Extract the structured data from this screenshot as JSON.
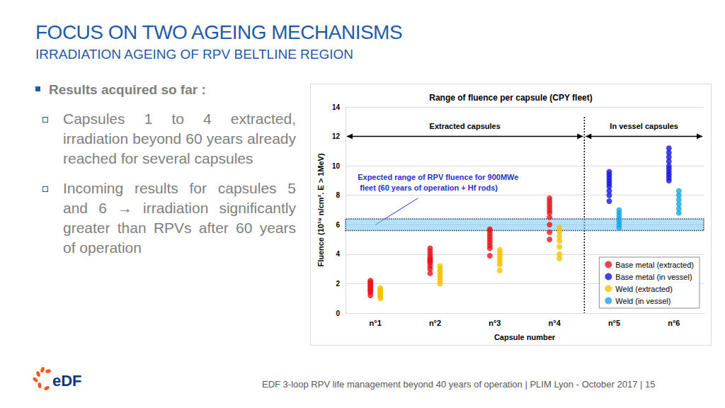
{
  "header": {
    "title": "FOCUS ON TWO AGEING MECHANISMS",
    "subtitle": "IRRADIATION AGEING OF RPV BELTLINE REGION"
  },
  "bullets": {
    "heading": "Results acquired so far :",
    "items": [
      "Capsules 1 to 4 extracted, irradiation beyond 60 years already reached for several capsules",
      "Incoming results for capsules 5 and 6 → irradiation significantly greater than RPVs after 60 years of operation"
    ]
  },
  "logo": "eDF",
  "footer": "EDF 3-loop RPV life management beyond 40 years of operation | PLIM Lyon - October 2017 | 15",
  "chart_data": {
    "type": "scatter",
    "title": "Range of fluence per capsule (CPY fleet)",
    "x_label": "Capsule number",
    "y_label": "Fluence (10¹⁹ n/cm². E > 1MeV)",
    "categories": [
      "n°1",
      "n°2",
      "n°3",
      "n°4",
      "n°5",
      "n°6"
    ],
    "series": [
      {
        "name": "Base metal (extracted)",
        "color": "#e8141b",
        "marker": "circle",
        "values": [
          [
            1.2,
            1.4,
            1.5,
            1.6,
            1.7,
            1.8,
            1.9,
            2.0,
            2.1,
            2.2
          ],
          [
            2.7,
            3.0,
            3.2,
            3.4,
            3.5,
            3.6,
            3.7,
            3.8,
            4.0,
            4.2,
            4.4
          ],
          [
            3.9,
            4.4,
            4.6,
            4.8,
            5.0,
            5.2,
            5.4,
            5.6,
            5.7
          ],
          [
            5.0,
            5.5,
            6.0,
            6.5,
            6.8,
            7.0,
            7.2,
            7.4,
            7.6,
            7.8
          ],
          null,
          null
        ]
      },
      {
        "name": "Base metal (in vessel)",
        "color": "#1414e0",
        "marker": "circle",
        "values": [
          null,
          null,
          null,
          null,
          [
            7.6,
            8.0,
            8.3,
            8.6,
            8.8,
            9.0,
            9.2,
            9.4,
            9.6
          ],
          [
            9.0,
            9.2,
            9.4,
            9.6,
            9.8,
            10.0,
            10.3,
            10.6,
            10.9,
            11.2
          ]
        ]
      },
      {
        "name": "Weld (extracted)",
        "color": "#f5c200",
        "marker": "circle",
        "values": [
          [
            1.0,
            1.1,
            1.2,
            1.3,
            1.4,
            1.5,
            1.6,
            1.7
          ],
          [
            2.0,
            2.2,
            2.4,
            2.6,
            2.8,
            3.0,
            3.2
          ],
          [
            2.9,
            3.3,
            3.5,
            3.7,
            3.9,
            4.1,
            4.3
          ],
          [
            3.7,
            4.0,
            4.5,
            4.9,
            5.2,
            5.5,
            5.8
          ],
          null,
          null
        ]
      },
      {
        "name": "Weld (in vessel)",
        "color": "#17a8e6",
        "marker": "circle",
        "values": [
          null,
          null,
          null,
          null,
          [
            5.8,
            6.0,
            6.2,
            6.4,
            6.6,
            6.8,
            7.0
          ],
          [
            6.8,
            7.1,
            7.4,
            7.7,
            8.0,
            8.3
          ]
        ]
      }
    ],
    "ylim": [
      0,
      14
    ],
    "yticks": [
      0,
      2,
      4,
      6,
      8,
      10,
      12,
      14
    ],
    "grid": true,
    "legend": "bottom-right",
    "annotations": {
      "regions": [
        "Extracted capsules",
        "In vessel capsules"
      ],
      "expected_range": {
        "label": "Expected range of RPV fluence for 900MWe fleet (60 years of operation + Hf rods)",
        "values": [
          5.6,
          6.4
        ]
      }
    }
  }
}
